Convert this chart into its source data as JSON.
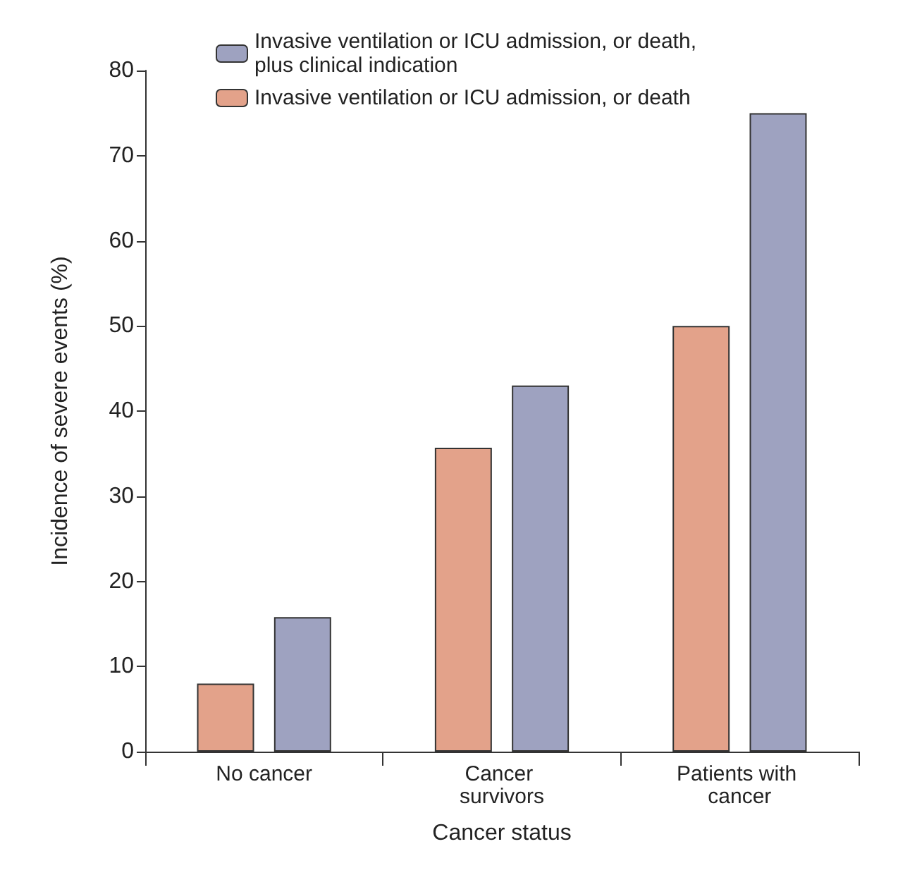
{
  "chart_data": {
    "type": "bar",
    "xlabel": "Cancer status",
    "ylabel": "Incidence of severe events (%)",
    "categories": [
      "No cancer",
      "Cancer survivors",
      "Patients with cancer"
    ],
    "series": [
      {
        "name": "Invasive ventilation or ICU admission, or death",
        "color": "#e3a28a",
        "values": [
          8,
          35.7,
          50
        ]
      },
      {
        "name": "Invasive ventilation or ICU admission, or death, plus clinical indication",
        "color": "#9ea2c0",
        "values": [
          15.8,
          43,
          75
        ]
      }
    ],
    "ylim": [
      0,
      80
    ],
    "yticks": [
      0,
      10,
      20,
      30,
      40,
      50,
      60,
      70,
      80
    ],
    "grid": false,
    "legend": "top left"
  }
}
